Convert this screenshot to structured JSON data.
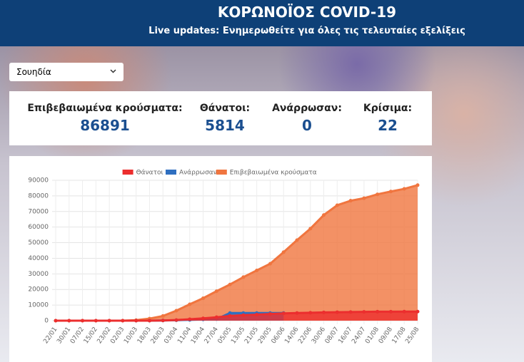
{
  "header": {
    "title": "ΚΟΡΩΝΟΪΟΣ COVID-19",
    "subtitle": "Live updates: Ενημερωθείτε για όλες τις τελευταίες εξελίξεις"
  },
  "dropdown": {
    "selected": "Σουηδία"
  },
  "stats": [
    {
      "label": "Επιβεβαιωμένα κρούσματα:",
      "value": 86891
    },
    {
      "label": "Θάνατοι:",
      "value": 5814
    },
    {
      "label": "Ανάρρωσαν:",
      "value": 0
    },
    {
      "label": "Κρίσιμα:",
      "value": 22
    }
  ],
  "chart_data": {
    "type": "line",
    "categories": [
      "22/01",
      "30/01",
      "07/02",
      "15/02",
      "23/02",
      "02/03",
      "10/03",
      "18/03",
      "26/03",
      "03/04",
      "11/04",
      "19/04",
      "27/04",
      "05/05",
      "13/05",
      "21/05",
      "29/05",
      "06/06",
      "14/06",
      "22/06",
      "30/06",
      "08/07",
      "16/07",
      "24/07",
      "01/08",
      "09/08",
      "17/08",
      "25/08"
    ],
    "series": [
      {
        "name": "Θάνατοι",
        "color": "#ec2e2e",
        "values": [
          0,
          0,
          0,
          0,
          0,
          0,
          0,
          10,
          100,
          400,
          900,
          1500,
          2200,
          3000,
          3500,
          3900,
          4300,
          4700,
          4900,
          5100,
          5300,
          5450,
          5550,
          5650,
          5750,
          5780,
          5800,
          5814
        ]
      },
      {
        "name": "Ανάρρωσαν",
        "color": "#2f6fc0",
        "values": [
          null,
          null,
          null,
          null,
          null,
          null,
          0,
          0,
          100,
          300,
          500,
          800,
          1000,
          4900,
          4900,
          4900,
          4900,
          4900,
          null,
          null,
          null,
          null,
          null,
          null,
          null,
          null,
          null,
          null
        ]
      },
      {
        "name": "Επιβεβαιωμένα κρούσματα",
        "color": "#f0753f",
        "values": [
          0,
          1,
          1,
          1,
          1,
          15,
          350,
          1300,
          3000,
          6400,
          10500,
          14400,
          18900,
          23200,
          27900,
          32200,
          36500,
          43900,
          51600,
          59000,
          67700,
          74000,
          76900,
          78500,
          81000,
          82800,
          84500,
          86891
        ]
      }
    ],
    "ylim": [
      0,
      90000
    ],
    "yticks": [
      0,
      10000,
      20000,
      30000,
      40000,
      50000,
      60000,
      70000,
      80000,
      90000
    ],
    "grid": true,
    "legend": "top"
  }
}
